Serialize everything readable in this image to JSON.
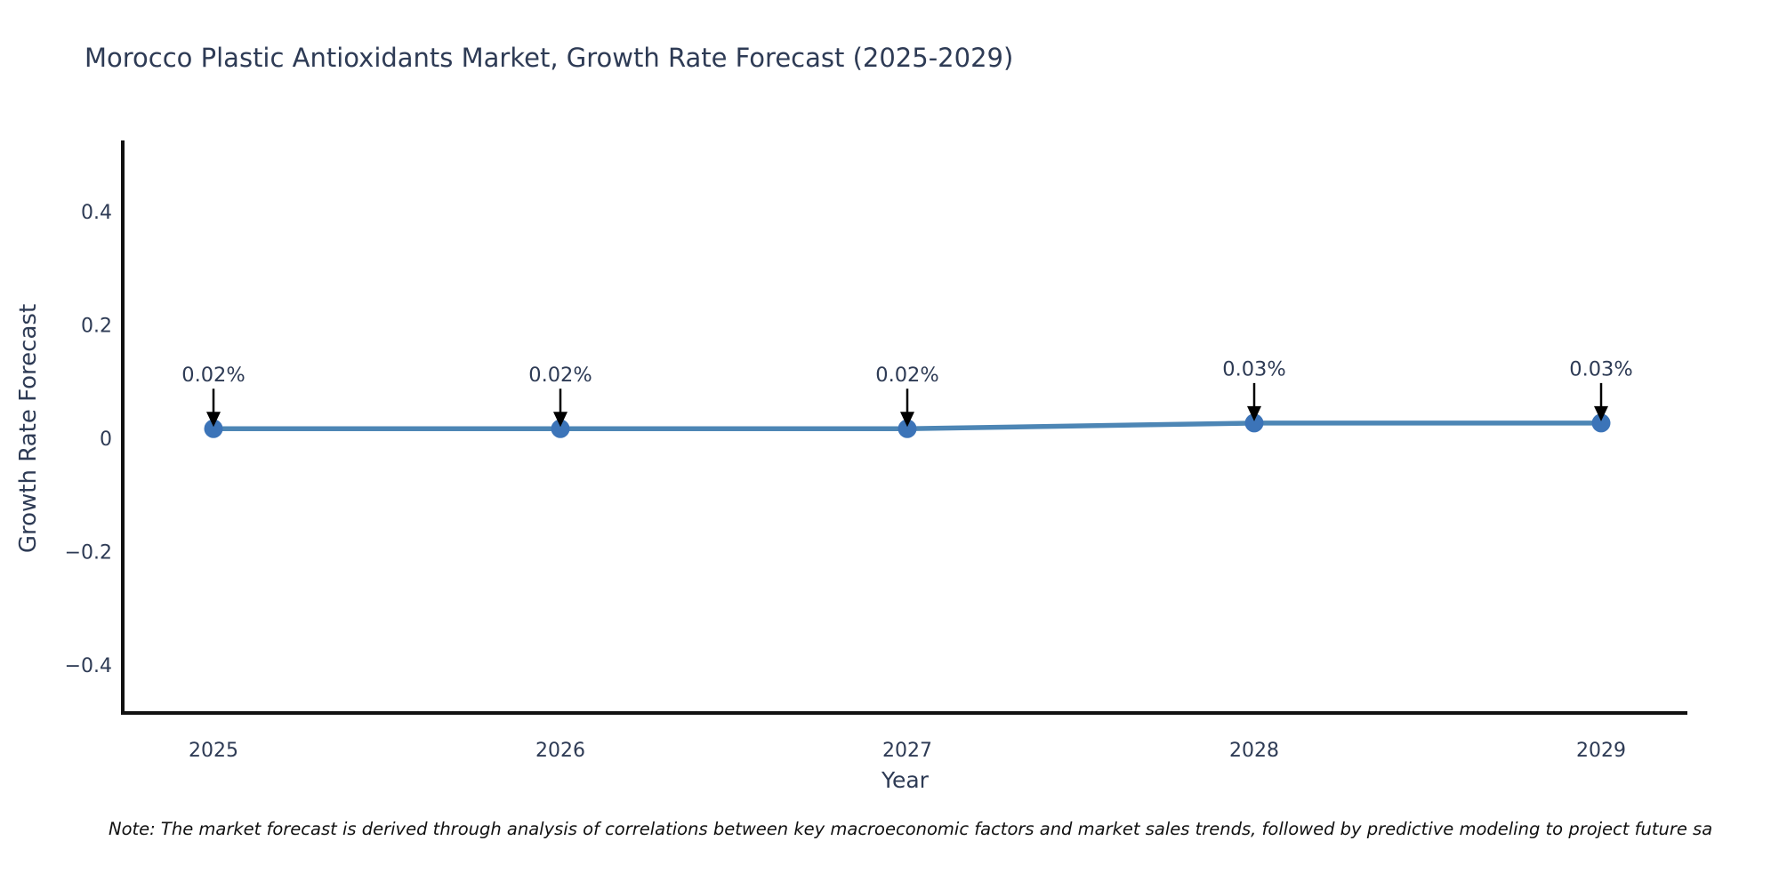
{
  "chart_data": {
    "type": "line",
    "title": "Morocco Plastic Antioxidants Market, Growth Rate Forecast (2025-2029)",
    "xlabel": "Year",
    "ylabel": "Growth Rate Forecast",
    "categories": [
      2025,
      2026,
      2027,
      2028,
      2029
    ],
    "series": [
      {
        "name": "Growth Rate Forecast",
        "values": [
          0.02,
          0.02,
          0.02,
          0.03,
          0.03
        ]
      }
    ],
    "point_labels": [
      "0.02%",
      "0.02%",
      "0.02%",
      "0.03%",
      "0.03%"
    ],
    "yticks": [
      -0.4,
      -0.2,
      0,
      0.2,
      0.4
    ],
    "ylim": [
      -0.482,
      0.527
    ],
    "grid": false,
    "legend_position": "none",
    "annotation_style": "value-label-with-down-arrow",
    "colors": {
      "line": "#4d86b5",
      "marker": "#3c74b8",
      "text": "#2e3b55",
      "axis": "#111111",
      "arrow": "#000000"
    }
  },
  "note": {
    "text": "Note: The market forecast is derived through analysis of correlations between key macroeconomic factors and market sales trends, followed by predictive modeling to project future sa"
  }
}
